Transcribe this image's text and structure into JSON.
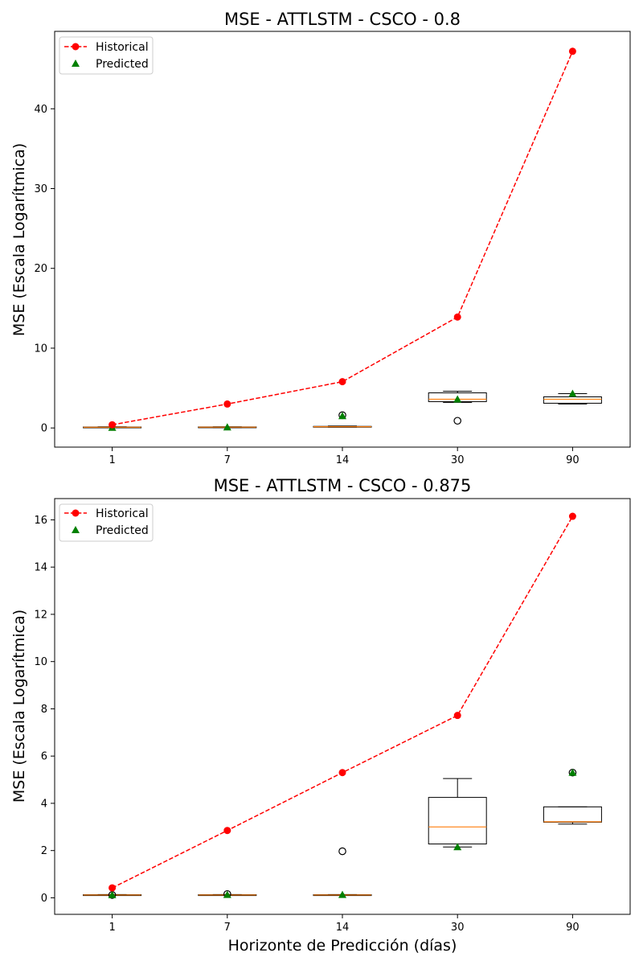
{
  "chart_data": [
    {
      "type": "line+box",
      "title": "MSE - ATTLSTM - CSCO - 0.8",
      "xlabel": "",
      "ylabel": "MSE (Escala Logarítmica)",
      "categories": [
        "1",
        "7",
        "14",
        "30",
        "90"
      ],
      "ylim": [
        -2.4,
        49.7
      ],
      "yticks": [
        0,
        10,
        20,
        30,
        40
      ],
      "legend": {
        "position": "top-left",
        "entries": [
          "Historical",
          "Predicted"
        ]
      },
      "grid": false,
      "historical": {
        "name": "Historical",
        "values": [
          0.4,
          3.0,
          5.8,
          13.9,
          47.2
        ]
      },
      "predicted": {
        "name": "Predicted",
        "values": [
          0.05,
          0.1,
          1.5,
          3.6,
          4.3
        ]
      },
      "boxes": [
        {
          "category": "1",
          "wlo": 0.02,
          "q1": 0.05,
          "median": 0.09,
          "q3": 0.12,
          "whi": 0.15,
          "outliers": []
        },
        {
          "category": "7",
          "wlo": 0.05,
          "q1": 0.08,
          "median": 0.1,
          "q3": 0.13,
          "whi": 0.15,
          "outliers": []
        },
        {
          "category": "14",
          "wlo": 0.1,
          "q1": 0.13,
          "median": 0.16,
          "q3": 0.2,
          "whi": 0.25,
          "outliers": [
            1.6
          ]
        },
        {
          "category": "30",
          "wlo": 3.2,
          "q1": 3.3,
          "median": 3.6,
          "q3": 4.4,
          "whi": 4.6,
          "outliers": [
            0.9
          ]
        },
        {
          "category": "90",
          "wlo": 3.0,
          "q1": 3.1,
          "median": 3.6,
          "q3": 3.9,
          "whi": 4.3,
          "outliers": []
        }
      ]
    },
    {
      "type": "line+box",
      "title": "MSE - ATTLSTM - CSCO - 0.875",
      "xlabel": "Horizonte de Predicción (días)",
      "ylabel": "MSE (Escala Logarítmica)",
      "categories": [
        "1",
        "7",
        "14",
        "30",
        "90"
      ],
      "ylim": [
        -0.7,
        16.9
      ],
      "yticks": [
        0,
        2,
        4,
        6,
        8,
        10,
        12,
        14,
        16
      ],
      "legend": {
        "position": "top-left",
        "entries": [
          "Historical",
          "Predicted"
        ]
      },
      "grid": false,
      "historical": {
        "name": "Historical",
        "values": [
          0.42,
          2.85,
          5.3,
          7.72,
          16.15
        ]
      },
      "predicted": {
        "name": "Predicted",
        "values": [
          0.12,
          0.13,
          0.13,
          2.15,
          5.3
        ]
      },
      "boxes": [
        {
          "category": "1",
          "wlo": 0.1,
          "q1": 0.11,
          "median": 0.12,
          "q3": 0.13,
          "whi": 0.14,
          "outliers": [
            0.12
          ]
        },
        {
          "category": "7",
          "wlo": 0.1,
          "q1": 0.11,
          "median": 0.12,
          "q3": 0.13,
          "whi": 0.14,
          "outliers": [
            0.16
          ]
        },
        {
          "category": "14",
          "wlo": 0.1,
          "q1": 0.11,
          "median": 0.12,
          "q3": 0.13,
          "whi": 0.14,
          "outliers": [
            1.97
          ]
        },
        {
          "category": "30",
          "wlo": 2.15,
          "q1": 2.28,
          "median": 3.0,
          "q3": 4.25,
          "whi": 5.05,
          "outliers": []
        },
        {
          "category": "90",
          "wlo": 3.12,
          "q1": 3.2,
          "median": 3.22,
          "q3": 3.85,
          "whi": 3.85,
          "outliers": [
            5.3
          ]
        }
      ]
    }
  ],
  "colors": {
    "historical": "#ff0000",
    "predicted": "#008000",
    "median": "#ff7f0e",
    "box": "#000000",
    "outlier": "#000000"
  }
}
